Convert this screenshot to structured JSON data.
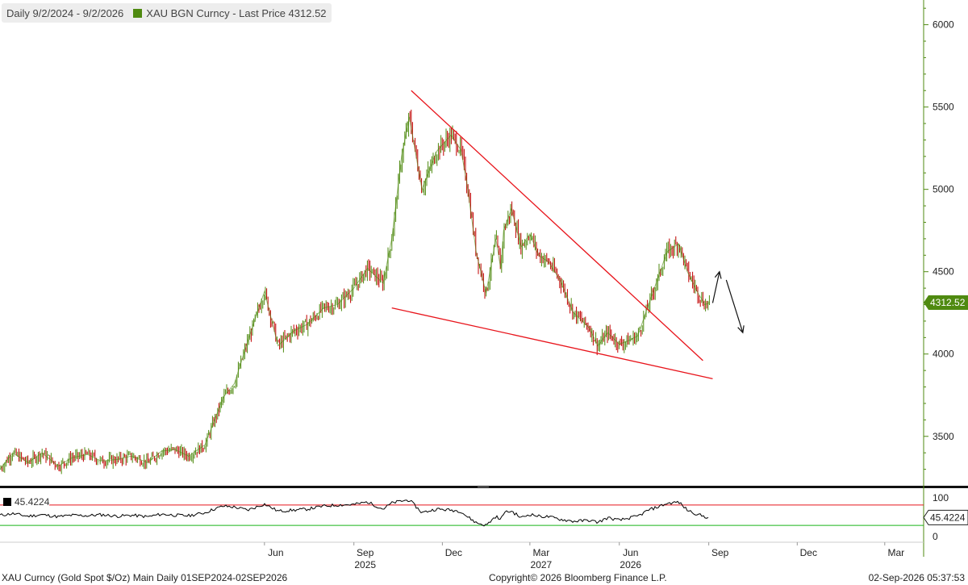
{
  "legend": {
    "range": "Daily 9/2/2024 - 9/2/2026",
    "series": "XAU BGN Curncy - Last Price 4312.52"
  },
  "rsi_legend": {
    "value": "45.4224"
  },
  "footer": {
    "left": "XAU Curncy (Gold Spot   $/Oz) Main Daily 01SEP2024-02SEP2026",
    "center": "Copyright© 2026 Bloomberg Finance L.P.",
    "right": "02-Sep-2026 05:37:53"
  },
  "colors": {
    "price": "#4f8a10",
    "down_candle": "#c00000",
    "trendline": "#e8141b",
    "rsi_line": "#000000",
    "rsi_upper": "#e8141b",
    "rsi_lower": "#19b319",
    "axis": "#4f8a10",
    "last_price_bg": "#4f8a10"
  },
  "chart_data": [
    {
      "type": "line",
      "title": "XAU BGN Curncy - Last Price",
      "y_axis_side": "right",
      "ylim": [
        3200,
        6150
      ],
      "yticks": [
        3500,
        4000,
        4500,
        5000,
        5500,
        6000
      ],
      "last_price": 4312.52,
      "x_month_labels": [
        "Jun",
        "Sep",
        "Dec",
        "Mar",
        "Jun",
        "Sep",
        "Dec",
        "Mar"
      ],
      "x_year_labels": [
        {
          "label": "2025",
          "under": "Sep"
        },
        {
          "label": "2026",
          "under": "Jun"
        },
        {
          "label": "2027",
          "under": "Mar"
        }
      ],
      "x": [
        "2024-09-02",
        "2024-09-15",
        "2024-10-01",
        "2024-10-15",
        "2024-11-01",
        "2024-11-15",
        "2024-12-01",
        "2024-12-15",
        "2025-01-01",
        "2025-01-15",
        "2025-02-01",
        "2025-02-15",
        "2025-03-01",
        "2025-03-15",
        "2025-04-01",
        "2025-04-10",
        "2025-04-20",
        "2025-05-01",
        "2025-05-15",
        "2025-06-01",
        "2025-06-15",
        "2025-07-01",
        "2025-07-15",
        "2025-08-01",
        "2025-08-15",
        "2025-09-01",
        "2025-09-15",
        "2025-10-01",
        "2025-10-10",
        "2025-10-20",
        "2025-10-28",
        "2025-11-10",
        "2025-11-25",
        "2025-12-10",
        "2025-12-20",
        "2025-12-26",
        "2026-01-05",
        "2026-01-15",
        "2026-01-25",
        "2026-01-30",
        "2026-02-02",
        "2026-02-10",
        "2026-02-20",
        "2026-03-01",
        "2026-03-10",
        "2026-03-20",
        "2026-04-01",
        "2026-04-15",
        "2026-05-01",
        "2026-05-10",
        "2026-05-20",
        "2026-06-01",
        "2026-06-10",
        "2026-06-20",
        "2026-07-01",
        "2026-07-10",
        "2026-07-20",
        "2026-08-01",
        "2026-08-10",
        "2026-08-20",
        "2026-08-28",
        "2026-09-02"
      ],
      "series": [
        {
          "name": "XAU BGN Curncy",
          "values": [
            3300,
            3400,
            3340,
            3400,
            3320,
            3370,
            3390,
            3350,
            3360,
            3380,
            3340,
            3410,
            3420,
            3380,
            3450,
            3590,
            3740,
            3820,
            4080,
            4380,
            4050,
            4140,
            4180,
            4280,
            4300,
            4400,
            4520,
            4430,
            4700,
            5200,
            5440,
            5000,
            5230,
            5330,
            5240,
            5050,
            4610,
            4370,
            4700,
            4520,
            4750,
            4880,
            4650,
            4730,
            4600,
            4560,
            4450,
            4250,
            4160,
            4050,
            4130,
            4060,
            4080,
            4110,
            4300,
            4450,
            4620,
            4670,
            4500,
            4380,
            4300,
            4312.52
          ]
        }
      ],
      "annotations": [
        {
          "type": "trendline",
          "from": [
            "2025-10-30",
            5600
          ],
          "to": [
            "2026-08-26",
            3960
          ]
        },
        {
          "type": "trendline",
          "from": [
            "2025-10-10",
            4280
          ],
          "to": [
            "2026-09-05",
            3850
          ]
        },
        {
          "type": "arrow",
          "direction": "up",
          "from": [
            "2026-09-05",
            4310
          ],
          "to": [
            "2026-09-12",
            4500
          ]
        },
        {
          "type": "arrow",
          "direction": "down",
          "from": [
            "2026-09-19",
            4450
          ],
          "to": [
            "2026-10-06",
            4130
          ]
        }
      ]
    },
    {
      "type": "line",
      "title": "RSI",
      "ylim": [
        0,
        100
      ],
      "yticks": [
        0,
        100
      ],
      "levels": [
        70,
        30
      ],
      "last_value": 45.4224,
      "series": [
        {
          "name": "RSI",
          "values": [
            50,
            53,
            48,
            51,
            47,
            50,
            49,
            51,
            48,
            50,
            47,
            52,
            50,
            49,
            55,
            62,
            68,
            66,
            60,
            72,
            58,
            60,
            62,
            68,
            70,
            71,
            76,
            62,
            74,
            78,
            80,
            55,
            62,
            60,
            58,
            48,
            35,
            30,
            48,
            40,
            55,
            58,
            45,
            52,
            48,
            47,
            42,
            38,
            40,
            36,
            45,
            40,
            44,
            48,
            60,
            66,
            73,
            76,
            60,
            52,
            47,
            45.42
          ]
        }
      ]
    }
  ]
}
